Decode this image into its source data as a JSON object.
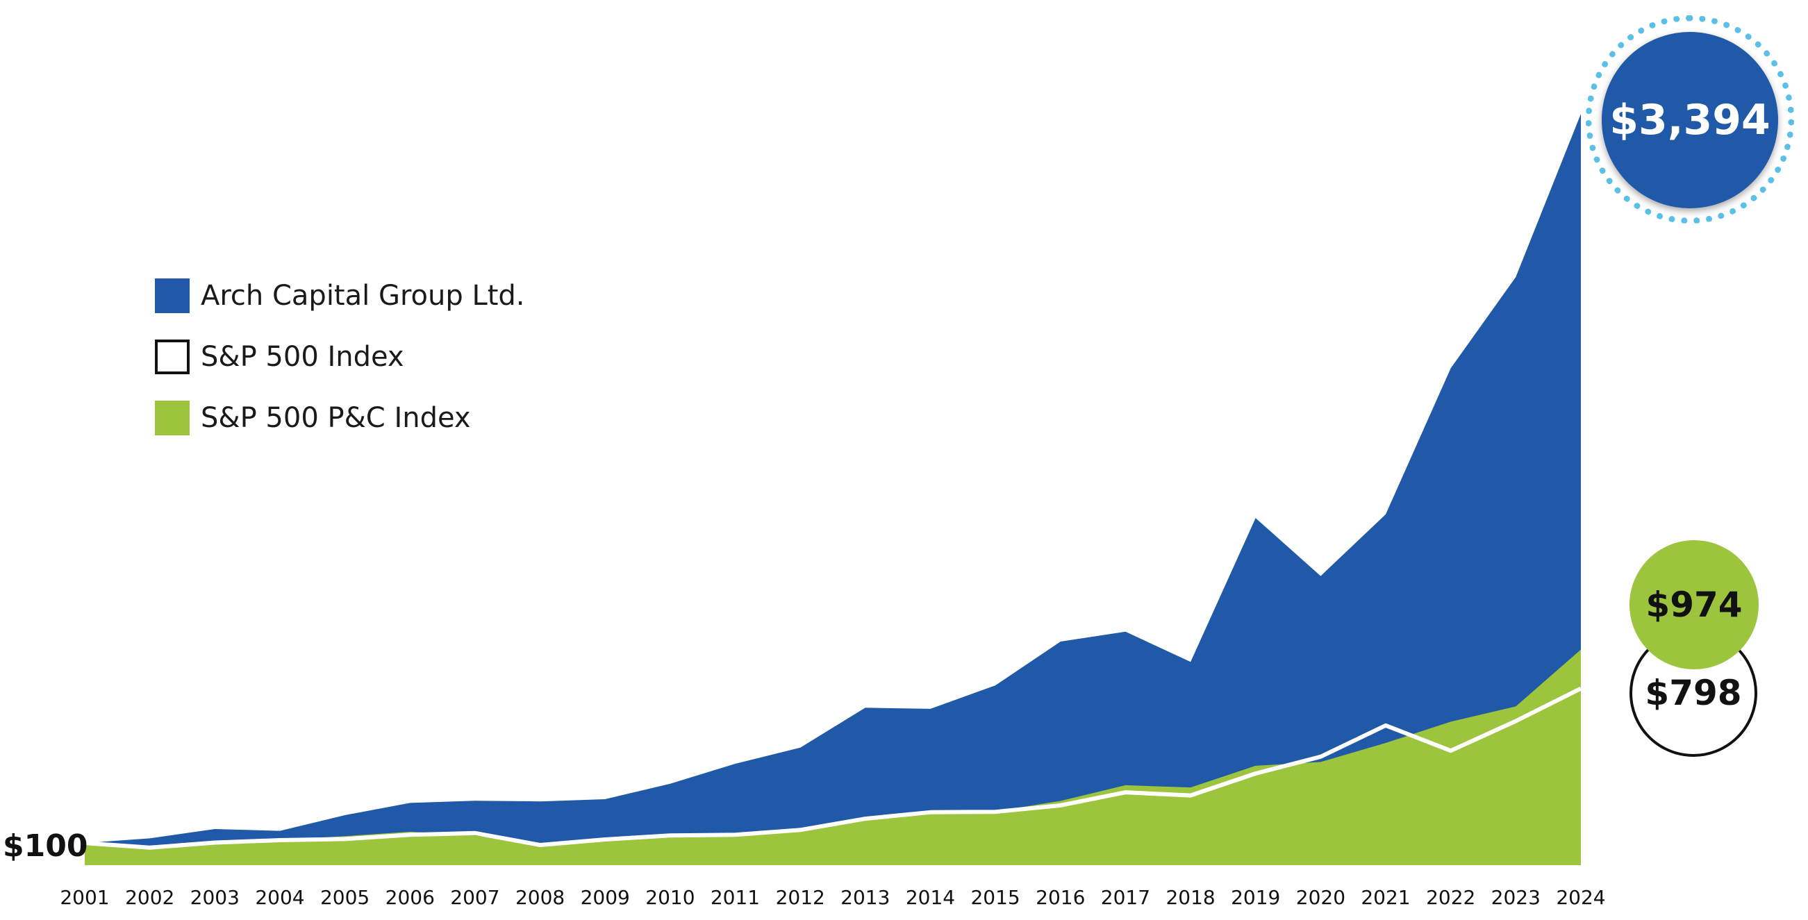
{
  "colors": {
    "arch": "#2059a8",
    "sp500": "#ffffff",
    "pc": "#9dc43d"
  },
  "labels": {
    "start": "$100",
    "arch_end": "$3,394",
    "sp500_end": "$798",
    "pc_end": "$974"
  },
  "legend": [
    {
      "label": "Arch Capital Group Ltd.",
      "style": "fill",
      "color": "#2059a8"
    },
    {
      "label": "S&P 500 Index",
      "style": "outline",
      "color": "#ffffff"
    },
    {
      "label": "S&P 500 P&C Index",
      "style": "fill",
      "color": "#9dc43d"
    }
  ],
  "chart_data": {
    "type": "area",
    "title": "",
    "xlabel": "",
    "ylabel": "",
    "x": [
      "2001",
      "2002",
      "2003",
      "2004",
      "2005",
      "2006",
      "2007",
      "2008",
      "2009",
      "2010",
      "2011",
      "2012",
      "2013",
      "2014",
      "2015",
      "2016",
      "2017",
      "2018",
      "2019",
      "2020",
      "2021",
      "2022",
      "2023",
      "2024"
    ],
    "ylim": [
      0,
      3600
    ],
    "grid": false,
    "legend_position": "left",
    "series": [
      {
        "name": "Arch Capital Group Ltd.",
        "render": "area",
        "values": [
          100,
          121,
          163,
          155,
          226,
          281,
          291,
          288,
          298,
          368,
          458,
          531,
          711,
          706,
          812,
          1010,
          1055,
          918,
          1568,
          1306,
          1585,
          2245,
          2657,
          3394
        ]
      },
      {
        "name": "S&P 500 P&C Index",
        "render": "area",
        "values": [
          100,
          87,
          104,
          114,
          131,
          151,
          134,
          91,
          114,
          128,
          135,
          157,
          211,
          238,
          243,
          290,
          361,
          351,
          449,
          466,
          552,
          648,
          717,
          974
        ]
      },
      {
        "name": "S&P 500 Index",
        "render": "line",
        "values": [
          100,
          79,
          102,
          113,
          118,
          137,
          145,
          91,
          116,
          134,
          137,
          159,
          210,
          239,
          241,
          270,
          329,
          315,
          414,
          490,
          631,
          517,
          651,
          798
        ]
      }
    ]
  }
}
